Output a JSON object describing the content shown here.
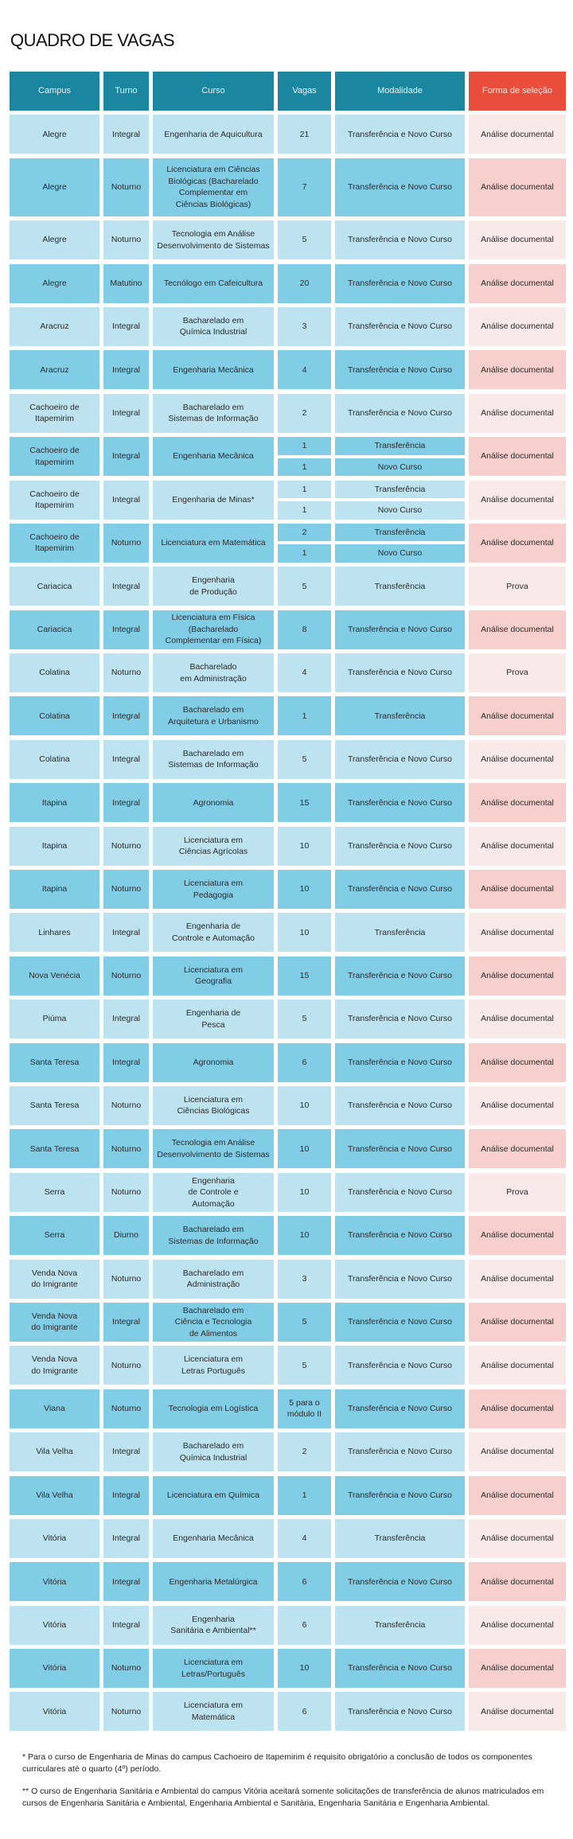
{
  "title": "QUADRO DE VAGAS",
  "headers": [
    "Campus",
    "Turno",
    "Curso",
    "Vagas",
    "Modalidade",
    "Forma de seleção"
  ],
  "colors": {
    "header": "#1b86a0",
    "header_selection": "#e94e3c",
    "row_light": "#bde2f0",
    "row_dark": "#82cde6",
    "selection_light": "#f9e9e9",
    "selection_dark": "#f7cfcc"
  },
  "rows": [
    {
      "campus": "Alegre",
      "turno": "Integral",
      "curso": "Engenharia de Aquicultura",
      "vagas": "21",
      "modalidade": "Transferência e Novo Curso",
      "selecao": "Análise documental"
    },
    {
      "campus": "Alegre",
      "turno": "Noturno",
      "curso": "Licenciatura em Ciências\nBiológicas (Bacharelado\nComplementar em\nCiências Biológicas)",
      "vagas": "7",
      "modalidade": "Transferência e Novo Curso",
      "selecao": "Análise documental",
      "tall": true
    },
    {
      "campus": "Alegre",
      "turno": "Noturno",
      "curso": "Tecnologia em Análise\nDesenvolvimento de Sistemas",
      "vagas": "5",
      "modalidade": "Transferência e Novo Curso",
      "selecao": "Análise documental"
    },
    {
      "campus": "Alegre",
      "turno": "Matutino",
      "curso": "Tecnólogo em Cafeicultura",
      "vagas": "20",
      "modalidade": "Transferência e Novo Curso",
      "selecao": "Análise documental"
    },
    {
      "campus": "Aracruz",
      "turno": "Integral",
      "curso": "Bacharelado em\nQuímica Industrial",
      "vagas": "3",
      "modalidade": "Transferência e Novo Curso",
      "selecao": "Análise documental"
    },
    {
      "campus": "Aracruz",
      "turno": "Integral",
      "curso": "Engenharia Mecânica",
      "vagas": "4",
      "modalidade": "Transferência e Novo Curso",
      "selecao": "Análise documental"
    },
    {
      "campus": "Cachoeiro de\nItapemirim",
      "turno": "Integral",
      "curso": "Bacharelado em\nSistemas de Informação",
      "vagas": "2",
      "modalidade": "Transferência e Novo Curso",
      "selecao": "Análise documental"
    },
    {
      "campus": "Cachoeiro de\nItapemirim",
      "turno": "Integral",
      "curso": "Engenharia Mecânica",
      "split": [
        {
          "vagas": "1",
          "modalidade": "Transferência"
        },
        {
          "vagas": "1",
          "modalidade": "Novo Curso"
        }
      ],
      "selecao": "Análise documental"
    },
    {
      "campus": "Cachoeiro de\nItapemirim",
      "turno": "Integral",
      "curso": "Engenharia de Minas*",
      "split": [
        {
          "vagas": "1",
          "modalidade": "Transferência"
        },
        {
          "vagas": "1",
          "modalidade": "Novo Curso"
        }
      ],
      "selecao": "Análise documental"
    },
    {
      "campus": "Cachoeiro de\nItapemirim",
      "turno": "Noturno",
      "curso": "Licenciatura em Matemática",
      "split": [
        {
          "vagas": "2",
          "modalidade": "Transferência"
        },
        {
          "vagas": "1",
          "modalidade": "Novo Curso"
        }
      ],
      "selecao": "Análise documental"
    },
    {
      "campus": "Cariacica",
      "turno": "Integral",
      "curso": "Engenharia\nde Produção",
      "vagas": "5",
      "modalidade": "Transferência",
      "selecao": "Prova"
    },
    {
      "campus": "Cariacica",
      "turno": "Integral",
      "curso": "Licenciatura em Física\n(Bacharelado\nComplementar em Física)",
      "vagas": "8",
      "modalidade": "Transferência e Novo Curso",
      "selecao": "Análise documental"
    },
    {
      "campus": "Colatina",
      "turno": "Noturno",
      "curso": "Bacharelado\nem Administração",
      "vagas": "4",
      "modalidade": "Transferência e Novo Curso",
      "selecao": "Prova"
    },
    {
      "campus": "Colatina",
      "turno": "Integral",
      "curso": "Bacharelado em\nArquitetura e Urbanismo",
      "vagas": "1",
      "modalidade": "Transferência",
      "selecao": "Análise documental"
    },
    {
      "campus": "Colatina",
      "turno": "Integral",
      "curso": "Bacharelado em\nSistemas de Informação",
      "vagas": "5",
      "modalidade": "Transferência e Novo Curso",
      "selecao": "Análise documental"
    },
    {
      "campus": "Itapina",
      "turno": "Integral",
      "curso": "Agronomia",
      "vagas": "15",
      "modalidade": "Transferência e Novo Curso",
      "selecao": "Análise documental"
    },
    {
      "campus": "Itapina",
      "turno": "Noturno",
      "curso": "Licenciatura em\nCiências Agrícolas",
      "vagas": "10",
      "modalidade": "Transferência e Novo Curso",
      "selecao": "Análise documental"
    },
    {
      "campus": "Itapina",
      "turno": "Noturno",
      "curso": "Licenciatura em\nPedagogia",
      "vagas": "10",
      "modalidade": "Transferência e Novo Curso",
      "selecao": "Análise documental"
    },
    {
      "campus": "Linhares",
      "turno": "Integral",
      "curso": "Engenharia de\nControle e Automação",
      "vagas": "10",
      "modalidade": "Transferência",
      "selecao": "Análise documental"
    },
    {
      "campus": "Nova Venécia",
      "turno": "Noturno",
      "curso": "Licenciatura em\nGeografia",
      "vagas": "15",
      "modalidade": "Transferência e Novo Curso",
      "selecao": "Análise documental"
    },
    {
      "campus": "Piúma",
      "turno": "Integral",
      "curso": "Engenharia de\nPesca",
      "vagas": "5",
      "modalidade": "Transferência e Novo Curso",
      "selecao": "Análise documental"
    },
    {
      "campus": "Santa Teresa",
      "turno": "Integral",
      "curso": "Agronomia",
      "vagas": "6",
      "modalidade": "Transferência e Novo Curso",
      "selecao": "Análise documental"
    },
    {
      "campus": "Santa Teresa",
      "turno": "Noturno",
      "curso": "Licenciatura em\nCiências Biológicas",
      "vagas": "10",
      "modalidade": "Transferência e Novo Curso",
      "selecao": "Análise documental"
    },
    {
      "campus": "Santa Teresa",
      "turno": "Noturno",
      "curso": "Tecnologia em Análise\nDesenvolvimento de Sistemas",
      "vagas": "10",
      "modalidade": "Transferência e Novo Curso",
      "selecao": "Análise documental"
    },
    {
      "campus": "Serra",
      "turno": "Noturno",
      "curso": "Engenharia\nde Controle e\nAutomação",
      "vagas": "10",
      "modalidade": "Transferência e Novo Curso",
      "selecao": "Prova"
    },
    {
      "campus": "Serra",
      "turno": "Diurno",
      "curso": "Bacharelado em\nSistemas de Informação",
      "vagas": "10",
      "modalidade": "Transferência e Novo Curso",
      "selecao": "Análise documental"
    },
    {
      "campus": "Venda Nova\ndo Imigrante",
      "turno": "Noturno",
      "curso": "Bacharelado em\nAdministração",
      "vagas": "3",
      "modalidade": "Transferência e Novo Curso",
      "selecao": "Análise documental"
    },
    {
      "campus": "Venda Nova\ndo Imigrante",
      "turno": "Integral",
      "curso": "Bacharelado em\nCiência e Tecnologia\nde Alimentos",
      "vagas": "5",
      "modalidade": "Transferência e Novo Curso",
      "selecao": "Análise documental"
    },
    {
      "campus": "Venda Nova\ndo Imigrante",
      "turno": "Noturno",
      "curso": "Licenciatura em\nLetras Português",
      "vagas": "5",
      "modalidade": "Transferência e Novo Curso",
      "selecao": "Análise documental"
    },
    {
      "campus": "Viana",
      "turno": "Noturno",
      "curso": "Tecnologia em Logística",
      "vagas": "5 para o\nmódulo II",
      "modalidade": "Transferência e Novo Curso",
      "selecao": "Análise documental"
    },
    {
      "campus": "Vila Velha",
      "turno": "Integral",
      "curso": "Bacharelado em\nQuímica Industrial",
      "vagas": "2",
      "modalidade": "Transferência e Novo Curso",
      "selecao": "Análise documental"
    },
    {
      "campus": "Vila Velha",
      "turno": "Integral",
      "curso": "Licenciatura em Química",
      "vagas": "1",
      "modalidade": "Transferência e Novo Curso",
      "selecao": "Análise documental"
    },
    {
      "campus": "Vitória",
      "turno": "Integral",
      "curso": "Engenharia Mecânica",
      "vagas": "4",
      "modalidade": "Transferência",
      "selecao": "Análise documental"
    },
    {
      "campus": "Vitória",
      "turno": "Integral",
      "curso": "Engenharia Metalúrgica",
      "vagas": "6",
      "modalidade": "Transferência e Novo Curso",
      "selecao": "Análise documental"
    },
    {
      "campus": "Vitória",
      "turno": "Integral",
      "curso": "Engenharia\nSanitária e Ambiental**",
      "vagas": "6",
      "modalidade": "Transferência",
      "selecao": "Análise documental"
    },
    {
      "campus": "Vitória",
      "turno": "Noturno",
      "curso": "Licenciatura em\nLetras/Português",
      "vagas": "10",
      "modalidade": "Transferência e Novo Curso",
      "selecao": "Análise documental"
    },
    {
      "campus": "Vitória",
      "turno": "Noturno",
      "curso": "Licenciatura em\nMatemática",
      "vagas": "6",
      "modalidade": "Transferência e Novo Curso",
      "selecao": "Análise documental"
    }
  ],
  "notes": [
    "* Para o curso de Engenharia de Minas do campus Cachoeiro de Itapemirim é requisito obrigatório a conclusão de todos os componentes curriculares até o quarto (4º) período.",
    "** O curso de Engenharia Sanitária e Ambiental do campus Vitória aceitará somente solicitações de transferência de alunos matriculados em cursos de Engenharia Sanitária e Ambiental, Engenharia Ambiental e Sanitária, Engenharia Sanitária e Engenharia Ambiental."
  ]
}
